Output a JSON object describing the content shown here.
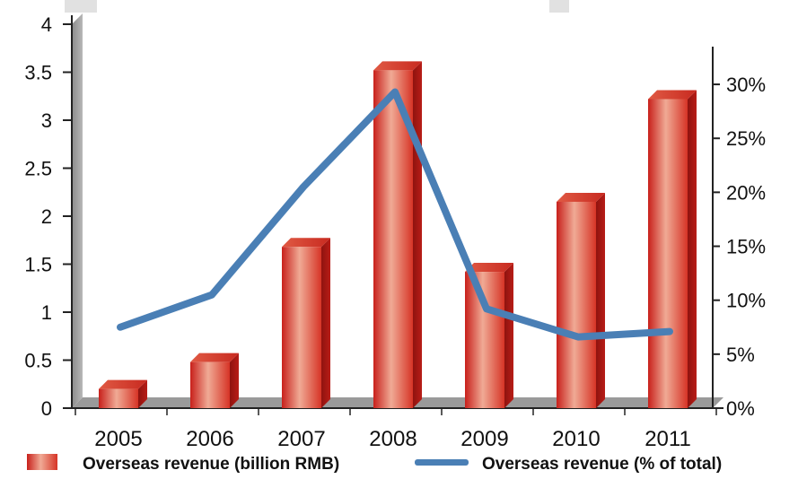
{
  "chart_data": {
    "type": "bar",
    "title": "",
    "categories": [
      "2005",
      "2006",
      "2007",
      "2008",
      "2009",
      "2010",
      "2011"
    ],
    "series": [
      {
        "name": "Overseas revenue (billion RMB)",
        "type": "bar",
        "axis": "left",
        "values": [
          0.2,
          0.48,
          1.68,
          3.52,
          1.42,
          2.15,
          3.22
        ],
        "color": "#d42a22"
      },
      {
        "name": "Overseas revenue (% of total)",
        "type": "line",
        "axis": "right",
        "values": [
          7.5,
          10.5,
          20.5,
          29.3,
          9.2,
          6.6,
          7.1
        ],
        "color": "#4a7fb5"
      }
    ],
    "y_left": {
      "min": 0,
      "max": 4,
      "ticks": [
        "0",
        "0.5",
        "1",
        "1.5",
        "2",
        "2.5",
        "3",
        "3.5",
        "4"
      ]
    },
    "y_right": {
      "min": 0,
      "max": 32,
      "ticks": [
        "0%",
        "5%",
        "10%",
        "15%",
        "20%",
        "25%",
        "30%"
      ]
    },
    "legend": "bottom"
  }
}
